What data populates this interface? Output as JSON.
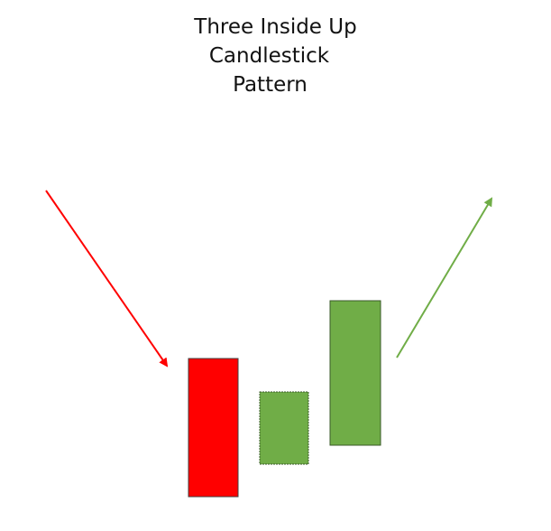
{
  "title": {
    "lines": [
      "Three Inside Up",
      "Candlestick",
      "Pattern"
    ]
  },
  "colors": {
    "bearish": "#ff0000",
    "bullish": "#70ad47",
    "arrow_down": "#ff0000",
    "arrow_up": "#70ad47",
    "text": "#111111"
  },
  "icons": {
    "down_arrow": "downtrend-arrow-icon",
    "up_arrow": "uptrend-arrow-icon"
  },
  "candles": [
    {
      "name": "bearish-candle",
      "direction": "down"
    },
    {
      "name": "inside-bullish-candle",
      "direction": "up"
    },
    {
      "name": "confirmation-bullish-candle",
      "direction": "up"
    }
  ]
}
